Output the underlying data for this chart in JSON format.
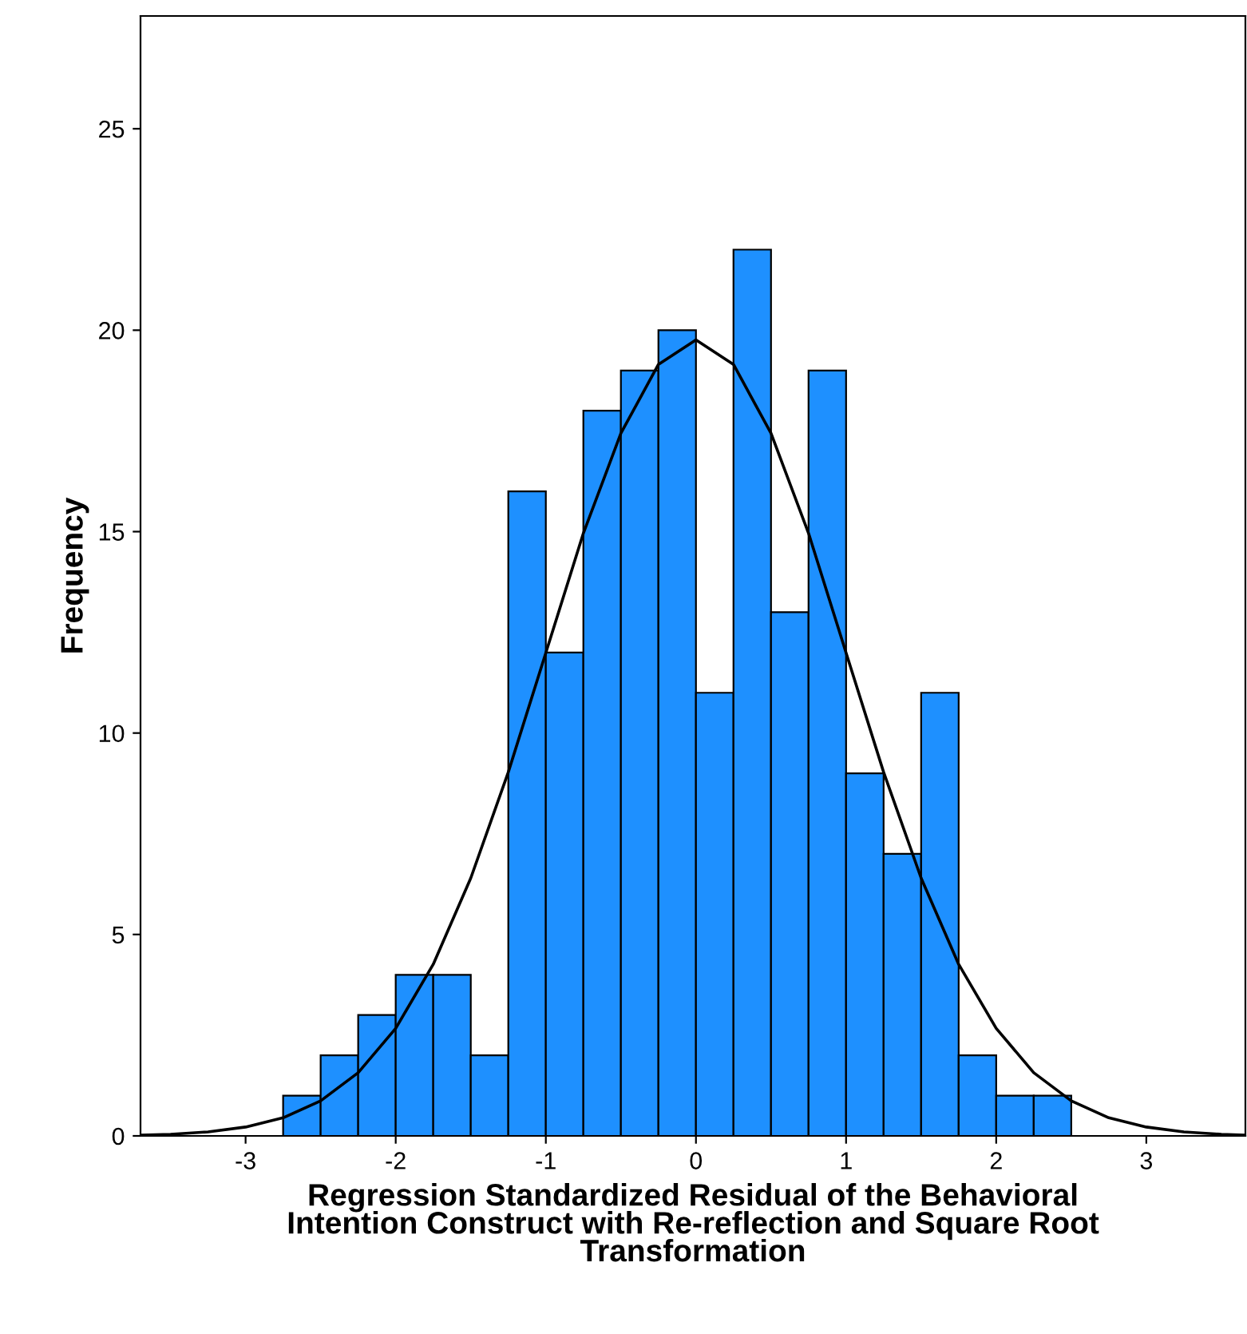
{
  "chart_data": {
    "type": "histogram",
    "xlabel": "Regression Standardized Residual of the Behavioral\nIntention Construct with Re-reflection and Square Root\nTransformation",
    "ylabel": "Frequency",
    "bins": [
      -2.75,
      -2.5,
      -2.25,
      -2,
      -1.75,
      -1.5,
      -1.25,
      -1,
      -0.75,
      -0.5,
      -0.25,
      0,
      0.25,
      0.5,
      0.75,
      1,
      1.25,
      1.5,
      1.75,
      2,
      2.25,
      2.5
    ],
    "values": [
      1,
      2,
      3,
      4,
      4,
      2,
      16,
      12,
      18,
      19,
      20,
      11,
      22,
      13,
      19,
      9,
      7,
      11,
      2,
      1,
      1
    ],
    "color": "#1e90ff",
    "series": [
      {
        "type": "line",
        "color": "#000000",
        "x": [
          -3.7,
          -3.5,
          -3.25,
          -3,
          -2.75,
          -2.5,
          -2.25,
          -2,
          -1.75,
          -1.5,
          -1.25,
          -1,
          -0.75,
          -0.5,
          -0.25,
          0,
          0.25,
          0.5,
          0.75,
          1,
          1.25,
          1.5,
          1.75,
          2,
          2.25,
          2.5,
          2.75,
          3,
          3.25,
          3.5,
          3.65
        ],
        "values": [
          0.02,
          0.04,
          0.1,
          0.22,
          0.45,
          0.87,
          1.57,
          2.67,
          4.26,
          6.4,
          9.03,
          11.99,
          14.96,
          17.44,
          19.15,
          19.76,
          19.15,
          17.44,
          14.96,
          11.99,
          9.03,
          6.4,
          4.26,
          2.67,
          1.57,
          0.87,
          0.45,
          0.22,
          0.1,
          0.04,
          0.02
        ]
      }
    ],
    "xlim": [
      -3.7,
      3.66
    ],
    "ylim": [
      0,
      27.8
    ],
    "xticks": [
      -3,
      -2,
      -1,
      0,
      1,
      2,
      3
    ],
    "yticks": [
      0,
      5,
      10,
      15,
      20,
      25
    ],
    "grid": false
  }
}
